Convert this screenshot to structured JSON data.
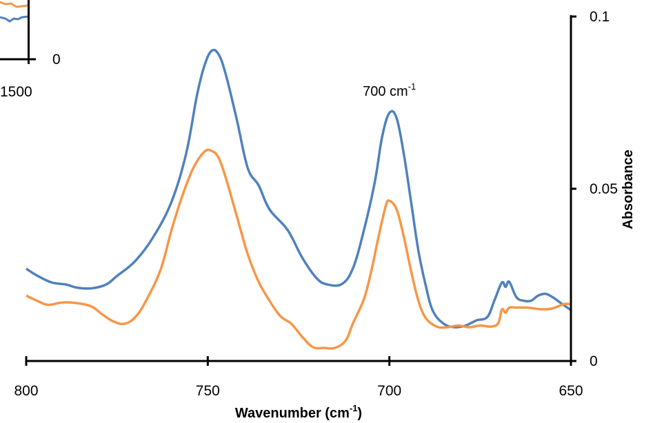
{
  "chart_data": {
    "type": "line",
    "xlabel": "Wavenumber (cm",
    "xlabel_sup": "-1",
    "xlabel_end": ")",
    "ylabel": "Absorbance",
    "xlim": [
      800,
      650
    ],
    "ylim": [
      0,
      0.1
    ],
    "x_reversed": true,
    "y_axis_position": "right",
    "x_ticks": [
      800,
      750,
      700,
      650
    ],
    "x_tick_labels": [
      "800",
      "750",
      "700",
      "650"
    ],
    "y_ticks": [
      0,
      0.05,
      0.1
    ],
    "y_tick_labels": [
      "0",
      "0.05",
      "0.1"
    ],
    "grid": false,
    "annotation": {
      "text": "700 cm",
      "sup": "-1",
      "x": 700,
      "y": 0.077
    },
    "inset": {
      "tick_labels": [
        "1500",
        "0"
      ],
      "series_colors": [
        "#f79646",
        "#4f81bd"
      ]
    },
    "series": [
      {
        "color": "#4f81bd",
        "points": [
          [
            800,
            0.0268
          ],
          [
            797,
            0.0248
          ],
          [
            793,
            0.0228
          ],
          [
            789,
            0.0222
          ],
          [
            786,
            0.0213
          ],
          [
            782,
            0.0211
          ],
          [
            778,
            0.0222
          ],
          [
            775,
            0.0247
          ],
          [
            770,
            0.029
          ],
          [
            765,
            0.036
          ],
          [
            760,
            0.0462
          ],
          [
            756,
            0.06
          ],
          [
            753,
            0.077
          ],
          [
            751,
            0.0855
          ],
          [
            749,
            0.09
          ],
          [
            747,
            0.089
          ],
          [
            745,
            0.083
          ],
          [
            742,
            0.07
          ],
          [
            739,
            0.056
          ],
          [
            736,
            0.051
          ],
          [
            733,
            0.044
          ],
          [
            728,
            0.038
          ],
          [
            724,
            0.03
          ],
          [
            720,
            0.024
          ],
          [
            717,
            0.0222
          ],
          [
            713,
            0.0224
          ],
          [
            710,
            0.027
          ],
          [
            707,
            0.038
          ],
          [
            704,
            0.052
          ],
          [
            702,
            0.065
          ],
          [
            700,
            0.072
          ],
          [
            698,
            0.0705
          ],
          [
            696,
            0.06
          ],
          [
            694,
            0.046
          ],
          [
            692,
            0.032
          ],
          [
            690,
            0.022
          ],
          [
            688,
            0.0145
          ],
          [
            685,
            0.0108
          ],
          [
            682,
            0.0098
          ],
          [
            679,
            0.0103
          ],
          [
            676,
            0.0118
          ],
          [
            673,
            0.0128
          ],
          [
            671,
            0.0178
          ],
          [
            669,
            0.0228
          ],
          [
            668,
            0.0215
          ],
          [
            667,
            0.023
          ],
          [
            665,
            0.0185
          ],
          [
            663,
            0.0175
          ],
          [
            661,
            0.0175
          ],
          [
            659,
            0.019
          ],
          [
            657,
            0.0195
          ],
          [
            655,
            0.0185
          ],
          [
            653,
            0.017
          ],
          [
            651,
            0.0155
          ],
          [
            650,
            0.0148
          ]
        ]
      },
      {
        "color": "#f79646",
        "points": [
          [
            800,
            0.019
          ],
          [
            797,
            0.0175
          ],
          [
            794,
            0.0163
          ],
          [
            790,
            0.017
          ],
          [
            786,
            0.0168
          ],
          [
            782,
            0.0158
          ],
          [
            779,
            0.0135
          ],
          [
            776,
            0.0115
          ],
          [
            773,
            0.0108
          ],
          [
            770,
            0.0127
          ],
          [
            767,
            0.0175
          ],
          [
            763,
            0.0265
          ],
          [
            760,
            0.038
          ],
          [
            757,
            0.048
          ],
          [
            754,
            0.056
          ],
          [
            751,
            0.0607
          ],
          [
            749,
            0.061
          ],
          [
            747,
            0.059
          ],
          [
            745,
            0.053
          ],
          [
            742,
            0.042
          ],
          [
            739,
            0.031
          ],
          [
            736,
            0.023
          ],
          [
            733,
            0.0175
          ],
          [
            730,
            0.013
          ],
          [
            727,
            0.0108
          ],
          [
            724,
            0.007
          ],
          [
            721,
            0.004
          ],
          [
            718,
            0.0038
          ],
          [
            715,
            0.0038
          ],
          [
            712,
            0.006
          ],
          [
            710,
            0.011
          ],
          [
            707,
            0.018
          ],
          [
            705,
            0.026
          ],
          [
            703,
            0.036
          ],
          [
            701,
            0.045
          ],
          [
            700,
            0.0465
          ],
          [
            698,
            0.044
          ],
          [
            696,
            0.036
          ],
          [
            694,
            0.026
          ],
          [
            692,
            0.0175
          ],
          [
            690,
            0.0125
          ],
          [
            687,
            0.01
          ],
          [
            684,
            0.0098
          ],
          [
            681,
            0.0103
          ],
          [
            678,
            0.0098
          ],
          [
            675,
            0.0103
          ],
          [
            672,
            0.01
          ],
          [
            670,
            0.011
          ],
          [
            669,
            0.015
          ],
          [
            668,
            0.014
          ],
          [
            667,
            0.0155
          ],
          [
            665,
            0.0155
          ],
          [
            662,
            0.0155
          ],
          [
            658,
            0.015
          ],
          [
            655,
            0.0153
          ],
          [
            652,
            0.0165
          ],
          [
            650,
            0.0165
          ]
        ]
      }
    ]
  }
}
